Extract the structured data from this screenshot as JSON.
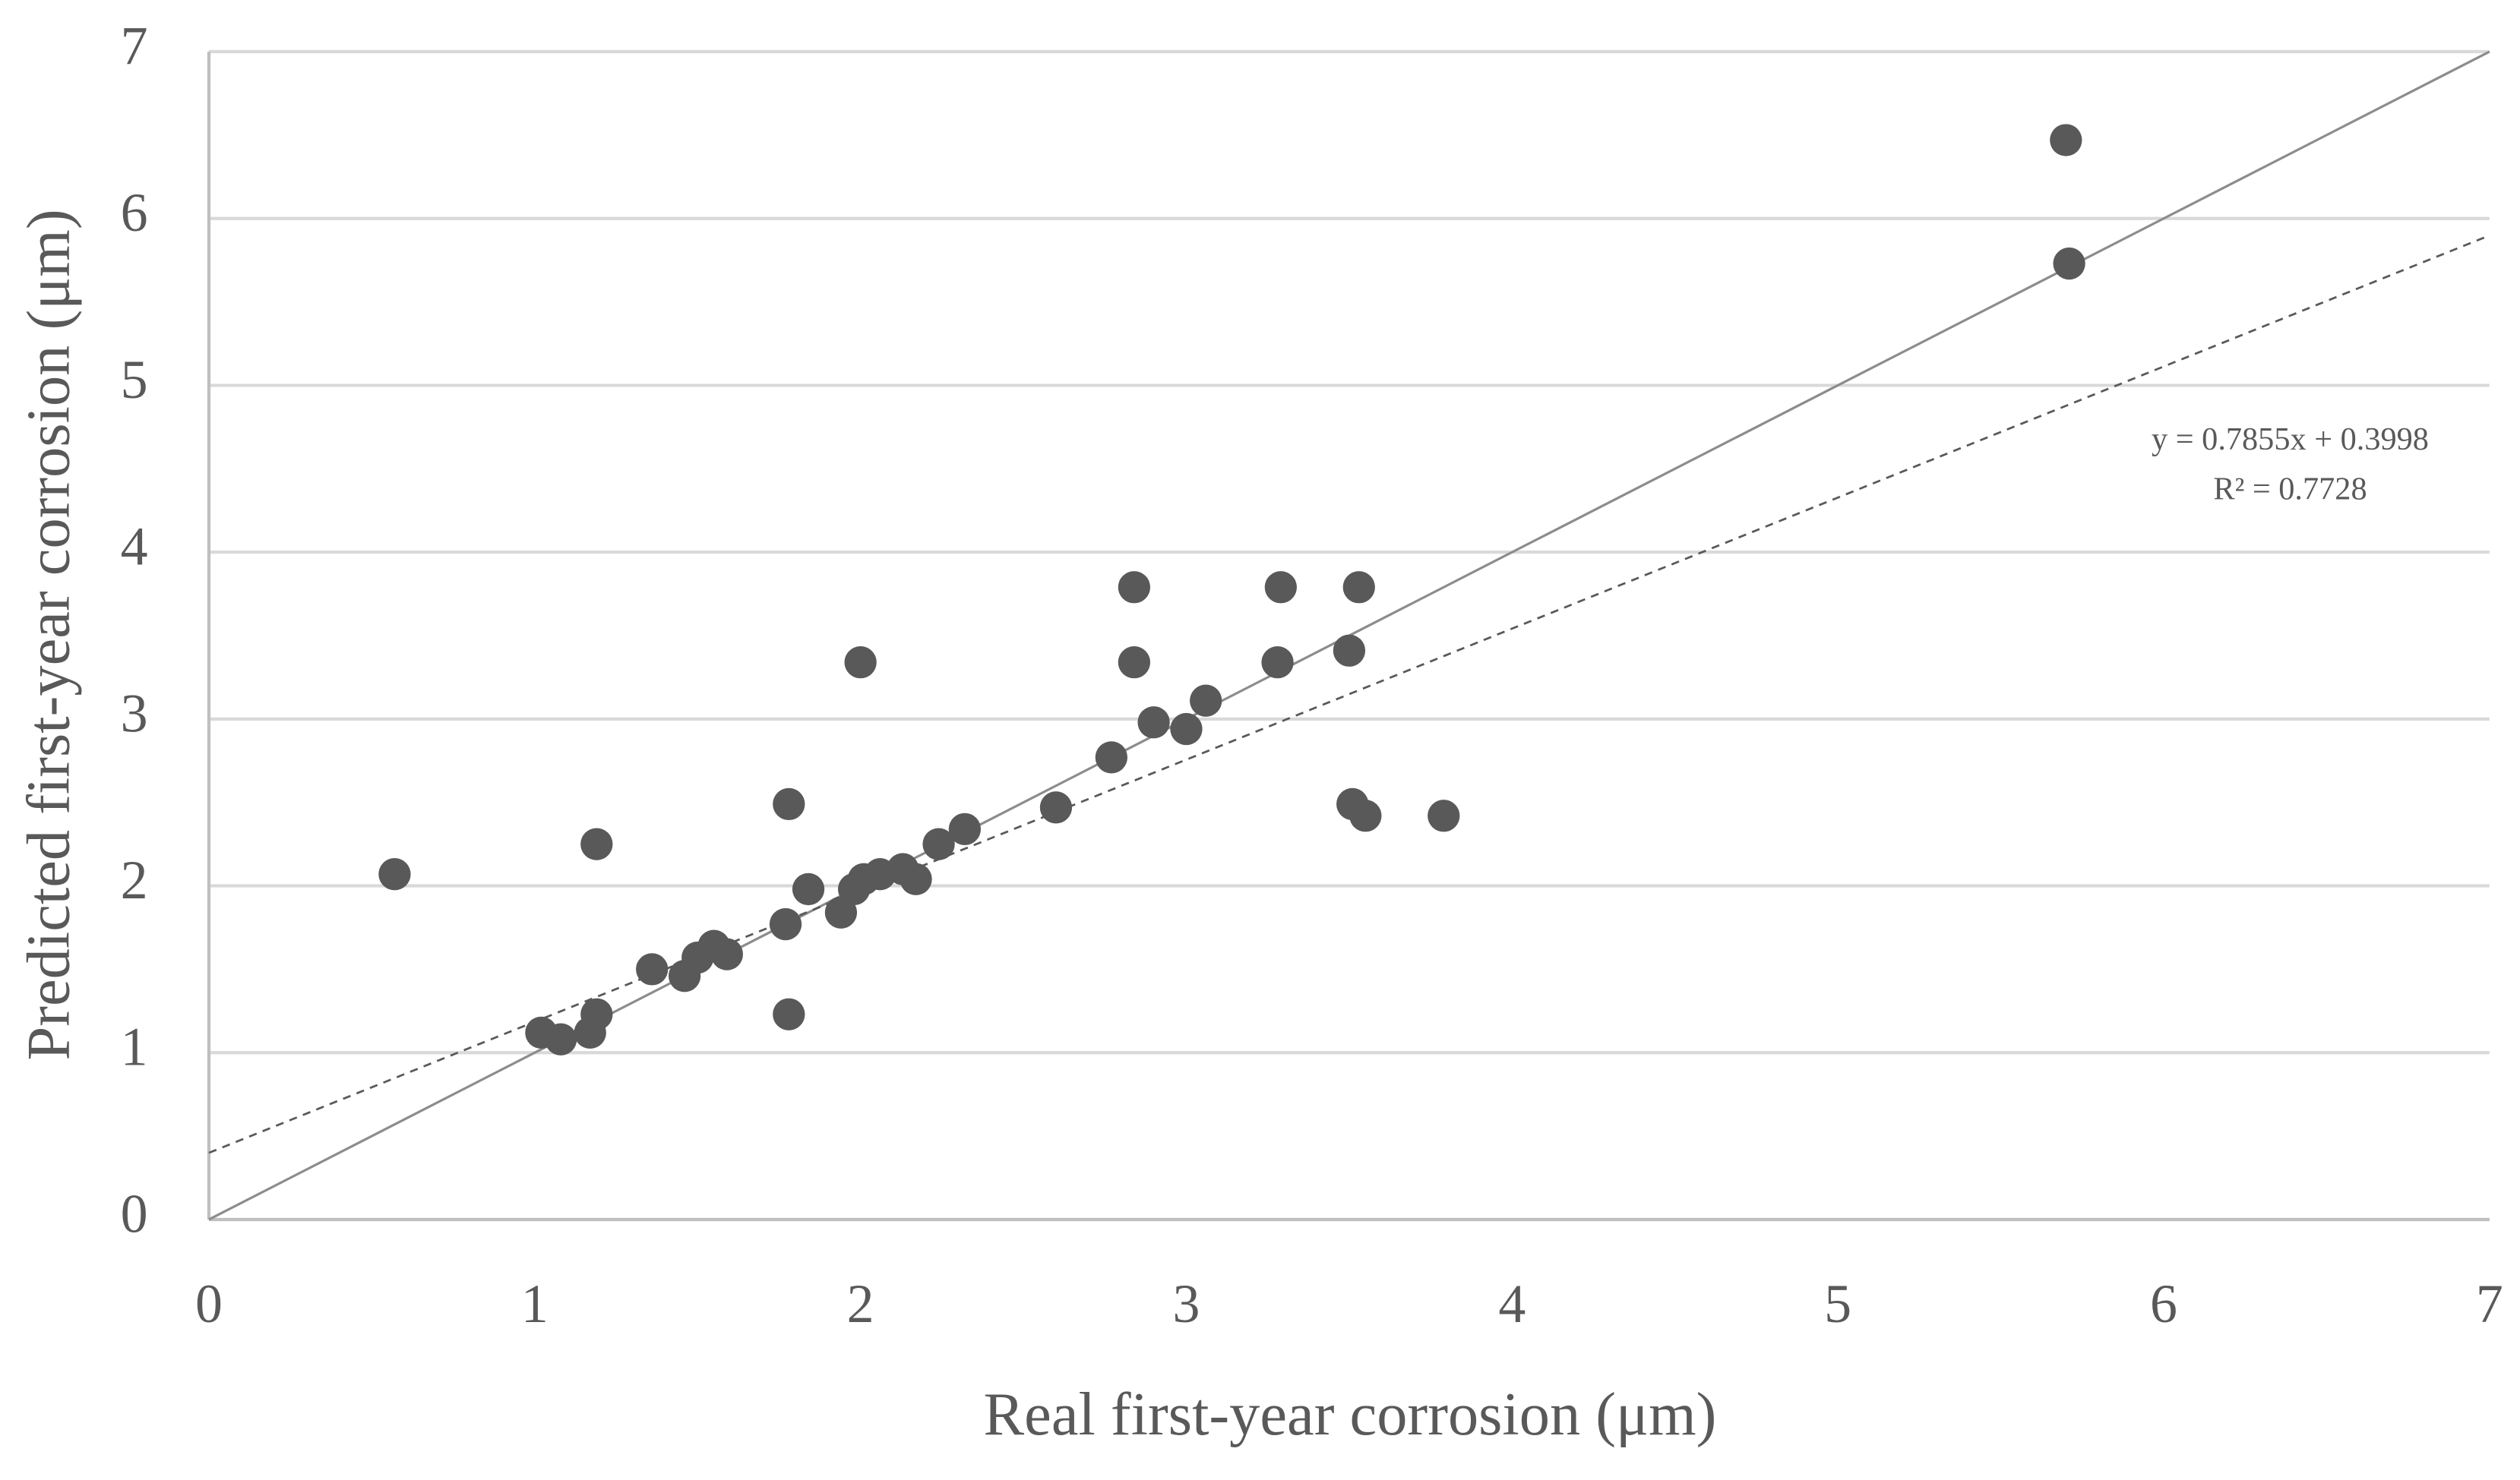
{
  "chart_data": {
    "type": "scatter",
    "x_label": "Real first-year corrosion (μm)",
    "y_label": "Predicted first-year corrosion (μm)",
    "x": [
      0.57,
      1.02,
      1.08,
      1.17,
      1.19,
      1.19,
      1.36,
      1.46,
      1.5,
      1.55,
      1.59,
      1.77,
      1.78,
      1.78,
      1.84,
      1.94,
      1.98,
      2.0,
      2.01,
      2.06,
      2.13,
      2.17,
      2.24,
      2.32,
      2.6,
      2.77,
      2.84,
      2.84,
      2.9,
      3.0,
      3.06,
      3.28,
      3.29,
      3.5,
      3.51,
      3.53,
      3.55,
      3.79,
      5.7,
      5.71
    ],
    "values": [
      2.07,
      1.12,
      1.08,
      1.12,
      1.23,
      2.25,
      1.5,
      1.46,
      1.57,
      1.64,
      1.59,
      1.77,
      1.23,
      2.49,
      1.98,
      1.84,
      1.98,
      3.34,
      2.04,
      2.07,
      2.1,
      2.04,
      2.25,
      2.34,
      2.47,
      2.77,
      3.34,
      3.79,
      2.98,
      2.94,
      3.11,
      3.34,
      3.79,
      3.41,
      2.49,
      3.79,
      2.42,
      2.42,
      6.47,
      5.73
    ],
    "color": "#595959",
    "xlim": [
      0,
      7
    ],
    "ylim": [
      0,
      7
    ],
    "xticks": [
      0,
      1,
      2,
      3,
      4,
      5,
      6,
      7
    ],
    "yticks": [
      0,
      1,
      2,
      3,
      4,
      5,
      6,
      7
    ],
    "grid": true,
    "trendline": {
      "slope": 0.7855,
      "intercept": 0.3998,
      "label": "y = 0.7855x + 0.3998",
      "r2_label": "R² = 0.7728"
    }
  }
}
